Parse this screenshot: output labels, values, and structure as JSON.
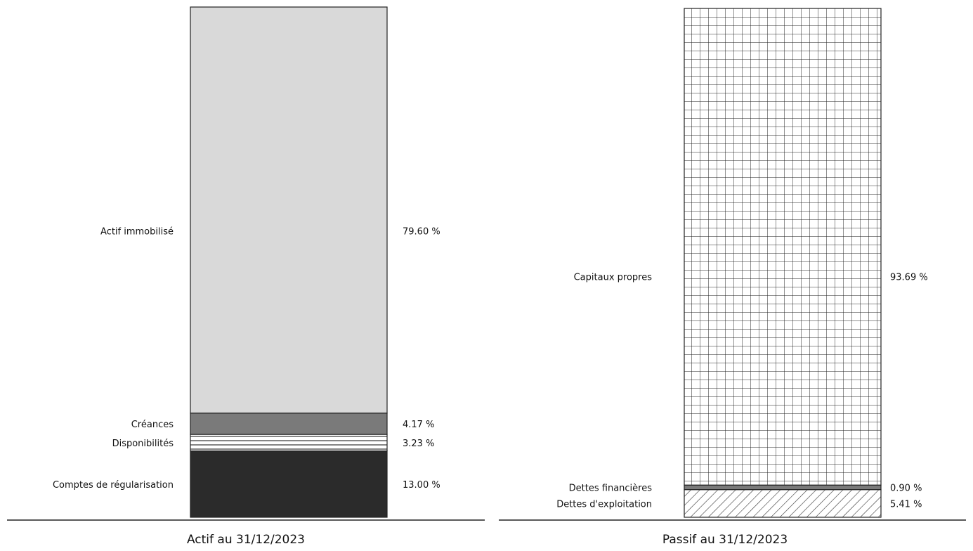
{
  "chart_data": [
    {
      "type": "stacked-bar",
      "title": "Actif au 31/12/2023",
      "unit": "%",
      "segments": [
        {
          "name": "Actif immobilisé",
          "value": 79.6,
          "value_label": "79.60 %",
          "fill": "light-gray",
          "color": "#d9d9d9"
        },
        {
          "name": "Créances",
          "value": 4.17,
          "value_label": "4.17 %",
          "fill": "gray",
          "color": "#7a7a7a"
        },
        {
          "name": "Disponibilités",
          "value": 3.23,
          "value_label": "3.23 %",
          "fill": "horizontal-lines",
          "color": "#ffffff"
        },
        {
          "name": "Comptes de régularisation",
          "value": 13.0,
          "value_label": "13.00 %",
          "fill": "dark",
          "color": "#2b2b2b"
        }
      ]
    },
    {
      "type": "stacked-bar",
      "title": "Passif au 31/12/2023",
      "unit": "%",
      "segments": [
        {
          "name": "Capitaux propres",
          "value": 93.69,
          "value_label": "93.69 %",
          "fill": "grid",
          "color": "#ffffff"
        },
        {
          "name": "Dettes financières",
          "value": 0.9,
          "value_label": "0.90 %",
          "fill": "gray",
          "color": "#7a7a7a"
        },
        {
          "name": "Dettes d'exploitation",
          "value": 5.41,
          "value_label": "5.41 %",
          "fill": "diagonal-hatch",
          "color": "#ffffff"
        }
      ]
    }
  ]
}
